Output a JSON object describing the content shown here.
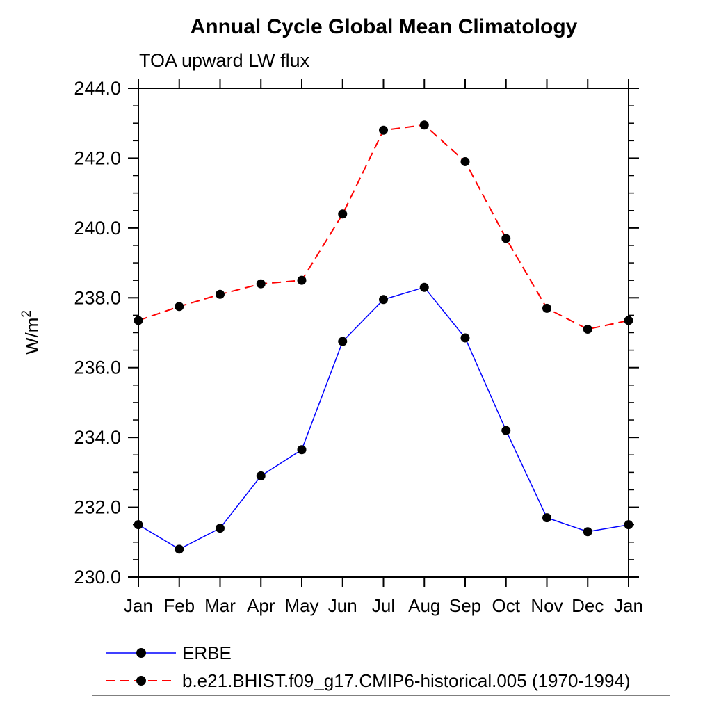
{
  "title": "Annual Cycle Global Mean Climatology",
  "subtitle": "TOA upward LW flux",
  "chart_data": {
    "type": "line",
    "x_categories": [
      "Jan",
      "Feb",
      "Mar",
      "Apr",
      "May",
      "Jun",
      "Jul",
      "Aug",
      "Sep",
      "Oct",
      "Nov",
      "Dec",
      "Jan"
    ],
    "ylabel": "W/m²",
    "xlabel": "",
    "ylim": [
      230.0,
      244.0
    ],
    "ytick_major_interval": 2.0,
    "ytick_minor_interval": 0.5,
    "ytick_label_format": "one-decimal",
    "grid": false,
    "legend_position": "below-plot-left",
    "frame_color": "#000000",
    "series": [
      {
        "name": "ERBE",
        "color": "#0000ff",
        "line_style": "solid",
        "line_width": 1.5,
        "marker": "filled-circle",
        "marker_color": "#000000",
        "values": [
          231.5,
          230.8,
          231.4,
          232.9,
          233.65,
          236.75,
          237.95,
          238.3,
          236.85,
          234.2,
          231.7,
          231.3,
          231.5
        ]
      },
      {
        "name": "b.e21.BHIST.f09_g17.CMIP6-historical.005 (1970-1994)",
        "color": "#ff0000",
        "line_style": "dashed",
        "line_width": 2,
        "marker": "filled-circle",
        "marker_color": "#000000",
        "values": [
          237.35,
          237.75,
          238.1,
          238.4,
          238.5,
          240.4,
          242.8,
          242.95,
          241.9,
          239.7,
          237.7,
          237.1,
          237.35
        ]
      }
    ]
  }
}
